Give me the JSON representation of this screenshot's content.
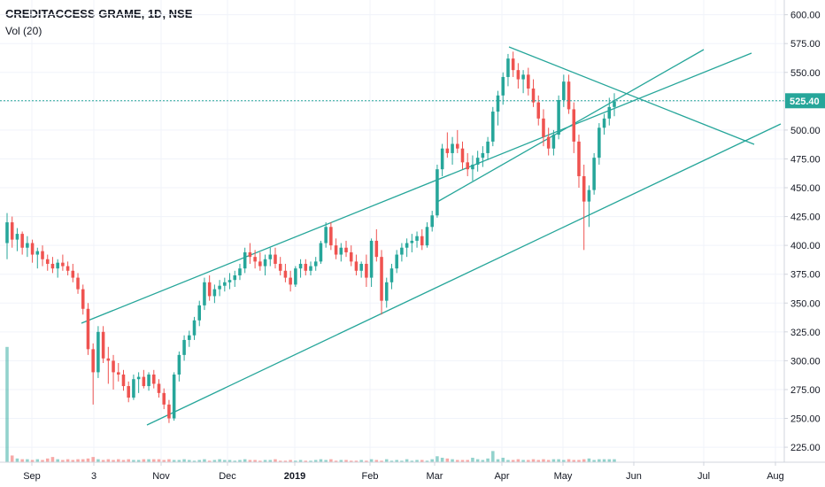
{
  "header": {
    "symbol_line": "CREDITACCESS GRAME, 1D, NSE",
    "volume_label": "Vol (20)"
  },
  "colors": {
    "up": "#26a69a",
    "down": "#ef5350",
    "trendline": "#26a69a",
    "last_price_line": "#26a69a"
  },
  "chart_data": {
    "type": "candlestick",
    "symbol": "CREDITACCESS GRAME",
    "interval": "1D",
    "exchange": "NSE",
    "ylim": [
      212,
      612
    ],
    "y_ticks": [
      "600.00",
      "575.00",
      "550.00",
      "525.00",
      "500.00",
      "475.00",
      "450.00",
      "425.00",
      "400.00",
      "375.00",
      "350.00",
      "325.00",
      "300.00",
      "275.00",
      "250.00",
      "225.00"
    ],
    "x_ticks": [
      {
        "label": "Sep",
        "bold": false
      },
      {
        "label": "3",
        "bold": false
      },
      {
        "label": "Nov",
        "bold": false
      },
      {
        "label": "Dec",
        "bold": false
      },
      {
        "label": "2019",
        "bold": true
      },
      {
        "label": "Feb",
        "bold": false
      },
      {
        "label": "Mar",
        "bold": false
      },
      {
        "label": "Apr",
        "bold": false
      },
      {
        "label": "May",
        "bold": false
      },
      {
        "label": "Jun",
        "bold": false
      },
      {
        "label": "Jul",
        "bold": false
      },
      {
        "label": "Aug",
        "bold": false
      }
    ],
    "last_price": 525.4,
    "last_price_label": "525.40",
    "candles": [
      [
        402,
        428,
        388,
        420
      ],
      [
        420,
        425,
        398,
        405
      ],
      [
        405,
        415,
        395,
        410
      ],
      [
        410,
        412,
        392,
        398
      ],
      [
        398,
        408,
        390,
        402
      ],
      [
        402,
        405,
        385,
        392
      ],
      [
        392,
        398,
        380,
        395
      ],
      [
        395,
        400,
        382,
        388
      ],
      [
        388,
        392,
        378,
        384
      ],
      [
        384,
        390,
        376,
        380
      ],
      [
        380,
        388,
        372,
        385
      ],
      [
        385,
        392,
        378,
        382
      ],
      [
        382,
        386,
        374,
        378
      ],
      [
        378,
        384,
        368,
        372
      ],
      [
        372,
        376,
        358,
        362
      ],
      [
        362,
        366,
        340,
        345
      ],
      [
        345,
        350,
        305,
        310
      ],
      [
        310,
        315,
        262,
        290
      ],
      [
        290,
        330,
        285,
        325
      ],
      [
        325,
        330,
        298,
        302
      ],
      [
        302,
        312,
        280,
        300
      ],
      [
        300,
        305,
        275,
        290
      ],
      [
        290,
        298,
        282,
        288
      ],
      [
        288,
        292,
        274,
        278
      ],
      [
        278,
        282,
        264,
        268
      ],
      [
        268,
        288,
        266,
        284
      ],
      [
        284,
        290,
        272,
        286
      ],
      [
        286,
        292,
        276,
        278
      ],
      [
        278,
        290,
        274,
        288
      ],
      [
        288,
        292,
        276,
        280
      ],
      [
        280,
        284,
        268,
        272
      ],
      [
        272,
        276,
        258,
        262
      ],
      [
        262,
        266,
        246,
        250
      ],
      [
        250,
        290,
        248,
        288
      ],
      [
        288,
        308,
        282,
        305
      ],
      [
        305,
        322,
        300,
        318
      ],
      [
        318,
        326,
        312,
        322
      ],
      [
        322,
        338,
        318,
        335
      ],
      [
        335,
        352,
        330,
        348
      ],
      [
        348,
        372,
        344,
        368
      ],
      [
        368,
        374,
        352,
        356
      ],
      [
        356,
        366,
        350,
        362
      ],
      [
        362,
        370,
        356,
        365
      ],
      [
        365,
        372,
        360,
        368
      ],
      [
        368,
        376,
        362,
        370
      ],
      [
        370,
        378,
        364,
        374
      ],
      [
        374,
        384,
        370,
        380
      ],
      [
        380,
        398,
        376,
        394
      ],
      [
        394,
        402,
        384,
        390
      ],
      [
        390,
        396,
        380,
        386
      ],
      [
        386,
        394,
        378,
        382
      ],
      [
        382,
        392,
        374,
        388
      ],
      [
        388,
        398,
        382,
        392
      ],
      [
        392,
        398,
        380,
        384
      ],
      [
        384,
        390,
        374,
        378
      ],
      [
        378,
        384,
        368,
        372
      ],
      [
        372,
        378,
        360,
        366
      ],
      [
        366,
        382,
        364,
        380
      ],
      [
        380,
        388,
        372,
        384
      ],
      [
        384,
        388,
        374,
        378
      ],
      [
        378,
        386,
        374,
        382
      ],
      [
        382,
        390,
        378,
        386
      ],
      [
        386,
        404,
        384,
        402
      ],
      [
        402,
        420,
        398,
        416
      ],
      [
        416,
        420,
        396,
        400
      ],
      [
        400,
        406,
        388,
        392
      ],
      [
        392,
        402,
        386,
        398
      ],
      [
        398,
        404,
        390,
        394
      ],
      [
        394,
        400,
        382,
        386
      ],
      [
        386,
        392,
        374,
        378
      ],
      [
        378,
        386,
        372,
        384
      ],
      [
        384,
        392,
        364,
        372
      ],
      [
        372,
        406,
        364,
        404
      ],
      [
        404,
        414,
        386,
        390
      ],
      [
        390,
        396,
        340,
        352
      ],
      [
        352,
        372,
        346,
        368
      ],
      [
        368,
        384,
        362,
        380
      ],
      [
        380,
        396,
        376,
        392
      ],
      [
        392,
        402,
        386,
        398
      ],
      [
        398,
        406,
        390,
        402
      ],
      [
        402,
        410,
        394,
        404
      ],
      [
        404,
        412,
        398,
        408
      ],
      [
        408,
        414,
        396,
        400
      ],
      [
        400,
        420,
        398,
        416
      ],
      [
        416,
        430,
        412,
        426
      ],
      [
        426,
        470,
        424,
        466
      ],
      [
        466,
        488,
        460,
        484
      ],
      [
        484,
        498,
        476,
        480
      ],
      [
        480,
        494,
        470,
        488
      ],
      [
        488,
        500,
        480,
        484
      ],
      [
        484,
        490,
        466,
        472
      ],
      [
        472,
        480,
        460,
        466
      ],
      [
        466,
        478,
        456,
        470
      ],
      [
        470,
        482,
        464,
        476
      ],
      [
        476,
        486,
        468,
        480
      ],
      [
        480,
        494,
        474,
        490
      ],
      [
        490,
        520,
        486,
        516
      ],
      [
        516,
        534,
        504,
        530
      ],
      [
        530,
        550,
        522,
        546
      ],
      [
        546,
        566,
        538,
        562
      ],
      [
        562,
        568,
        546,
        552
      ],
      [
        552,
        558,
        536,
        544
      ],
      [
        544,
        552,
        532,
        548
      ],
      [
        548,
        554,
        530,
        536
      ],
      [
        536,
        544,
        520,
        524
      ],
      [
        524,
        530,
        504,
        510
      ],
      [
        510,
        518,
        486,
        494
      ],
      [
        494,
        502,
        478,
        484
      ],
      [
        484,
        500,
        478,
        496
      ],
      [
        496,
        530,
        492,
        526
      ],
      [
        526,
        548,
        520,
        542
      ],
      [
        542,
        548,
        514,
        518
      ],
      [
        518,
        524,
        480,
        490
      ],
      [
        490,
        496,
        450,
        460
      ],
      [
        460,
        470,
        396,
        438
      ],
      [
        438,
        452,
        416,
        448
      ],
      [
        448,
        480,
        444,
        476
      ],
      [
        476,
        506,
        470,
        502
      ],
      [
        502,
        514,
        496,
        510
      ],
      [
        510,
        528,
        504,
        520
      ],
      [
        520,
        532,
        512,
        525
      ]
    ],
    "volumes": [
      310,
      18,
      10,
      8,
      8,
      6,
      8,
      6,
      10,
      14,
      8,
      6,
      8,
      6,
      8,
      8,
      10,
      14,
      8,
      6,
      8,
      6,
      8,
      6,
      8,
      6,
      6,
      8,
      8,
      8,
      8,
      6,
      8,
      6,
      6,
      8,
      6,
      4,
      6,
      8,
      4,
      6,
      8,
      6,
      6,
      4,
      6,
      8,
      6,
      6,
      4,
      6,
      6,
      8,
      4,
      4,
      6,
      4,
      6,
      4,
      4,
      6,
      8,
      6,
      8,
      4,
      6,
      6,
      4,
      4,
      6,
      4,
      8,
      6,
      4,
      8,
      4,
      6,
      4,
      8,
      4,
      6,
      6,
      4,
      8,
      16,
      12,
      10,
      8,
      6,
      6,
      6,
      12,
      8,
      6,
      10,
      30,
      8,
      12,
      6,
      6,
      8,
      6,
      6,
      8,
      6,
      8,
      6,
      8,
      8,
      6,
      8,
      6,
      6,
      8,
      10,
      6,
      8,
      8,
      8,
      8
    ]
  }
}
